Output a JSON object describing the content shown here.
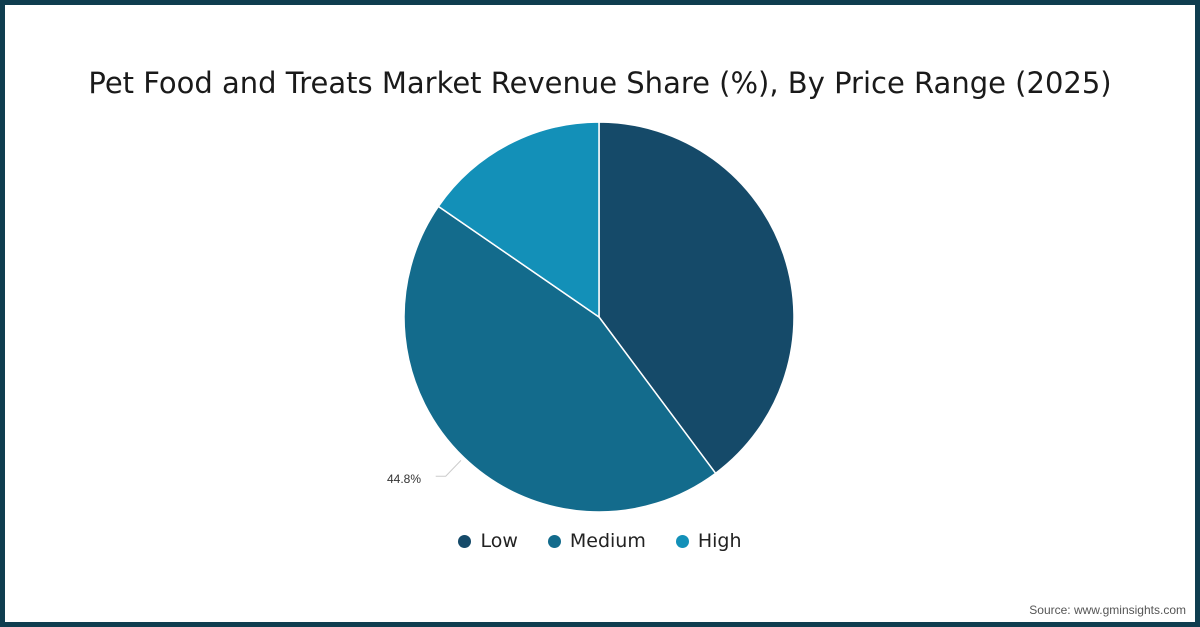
{
  "title": "Pet Food and Treats Market Revenue Share (%), By Price Range (2025)",
  "source": "Source: www.gminsights.com",
  "legend": [
    {
      "label": "Low",
      "color": "#154a69"
    },
    {
      "label": "Medium",
      "color": "#136b8c"
    },
    {
      "label": "High",
      "color": "#1390b8"
    }
  ],
  "data_labels": {
    "medium": "44.8%"
  },
  "colors": {
    "border": "#0f3d4f",
    "slice_stroke": "#ffffff",
    "leader": "#cccccc"
  },
  "chart_data": {
    "type": "pie",
    "title": "Pet Food and Treats Market Revenue Share (%), By Price Range (2025)",
    "categories": [
      "Low",
      "Medium",
      "High"
    ],
    "values": [
      39.8,
      44.8,
      15.4
    ],
    "labeled_values": {
      "Medium": 44.8
    },
    "colors": [
      "#154a69",
      "#136b8c",
      "#1390b8"
    ],
    "start_angle_deg": 0,
    "direction": "clockwise",
    "legend_position": "bottom",
    "source": "www.gminsights.com"
  }
}
